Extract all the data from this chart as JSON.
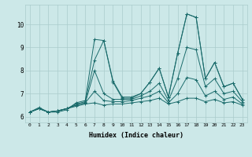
{
  "xlabel": "Humidex (Indice chaleur)",
  "background_color": "#cce8e8",
  "grid_color": "#aacccc",
  "line_color": "#1a6b6b",
  "xlim": [
    -0.5,
    23.5
  ],
  "ylim": [
    5.75,
    10.85
  ],
  "yticks": [
    6,
    7,
    8,
    9,
    10
  ],
  "xticks": [
    0,
    1,
    2,
    3,
    4,
    5,
    6,
    7,
    8,
    9,
    10,
    11,
    12,
    13,
    14,
    15,
    16,
    17,
    18,
    19,
    20,
    21,
    22,
    23
  ],
  "series": [
    [
      6.2,
      6.4,
      6.2,
      6.2,
      6.3,
      6.6,
      6.7,
      9.35,
      9.3,
      7.55,
      6.85,
      6.85,
      7.0,
      7.5,
      8.1,
      6.85,
      8.75,
      10.45,
      10.3,
      7.65,
      8.35,
      7.3,
      7.45,
      6.75
    ],
    [
      6.2,
      6.35,
      6.2,
      6.25,
      6.35,
      6.55,
      6.65,
      8.45,
      9.3,
      7.5,
      6.8,
      6.8,
      7.0,
      7.5,
      8.1,
      6.85,
      8.75,
      10.45,
      10.3,
      7.65,
      8.35,
      7.3,
      7.45,
      6.75
    ],
    [
      6.2,
      6.35,
      6.2,
      6.25,
      6.35,
      6.5,
      6.6,
      8.0,
      7.0,
      6.75,
      6.75,
      6.75,
      6.9,
      7.1,
      7.45,
      6.7,
      7.65,
      9.0,
      8.9,
      7.3,
      7.65,
      7.0,
      7.1,
      6.65
    ],
    [
      6.2,
      6.35,
      6.2,
      6.25,
      6.35,
      6.5,
      6.6,
      7.1,
      6.7,
      6.65,
      6.65,
      6.7,
      6.8,
      6.9,
      7.1,
      6.6,
      7.0,
      7.7,
      7.6,
      6.9,
      7.1,
      6.75,
      6.85,
      6.55
    ],
    [
      6.2,
      6.35,
      6.2,
      6.25,
      6.35,
      6.45,
      6.55,
      6.6,
      6.5,
      6.55,
      6.55,
      6.6,
      6.65,
      6.7,
      6.8,
      6.55,
      6.65,
      6.8,
      6.8,
      6.65,
      6.75,
      6.6,
      6.65,
      6.5
    ]
  ]
}
